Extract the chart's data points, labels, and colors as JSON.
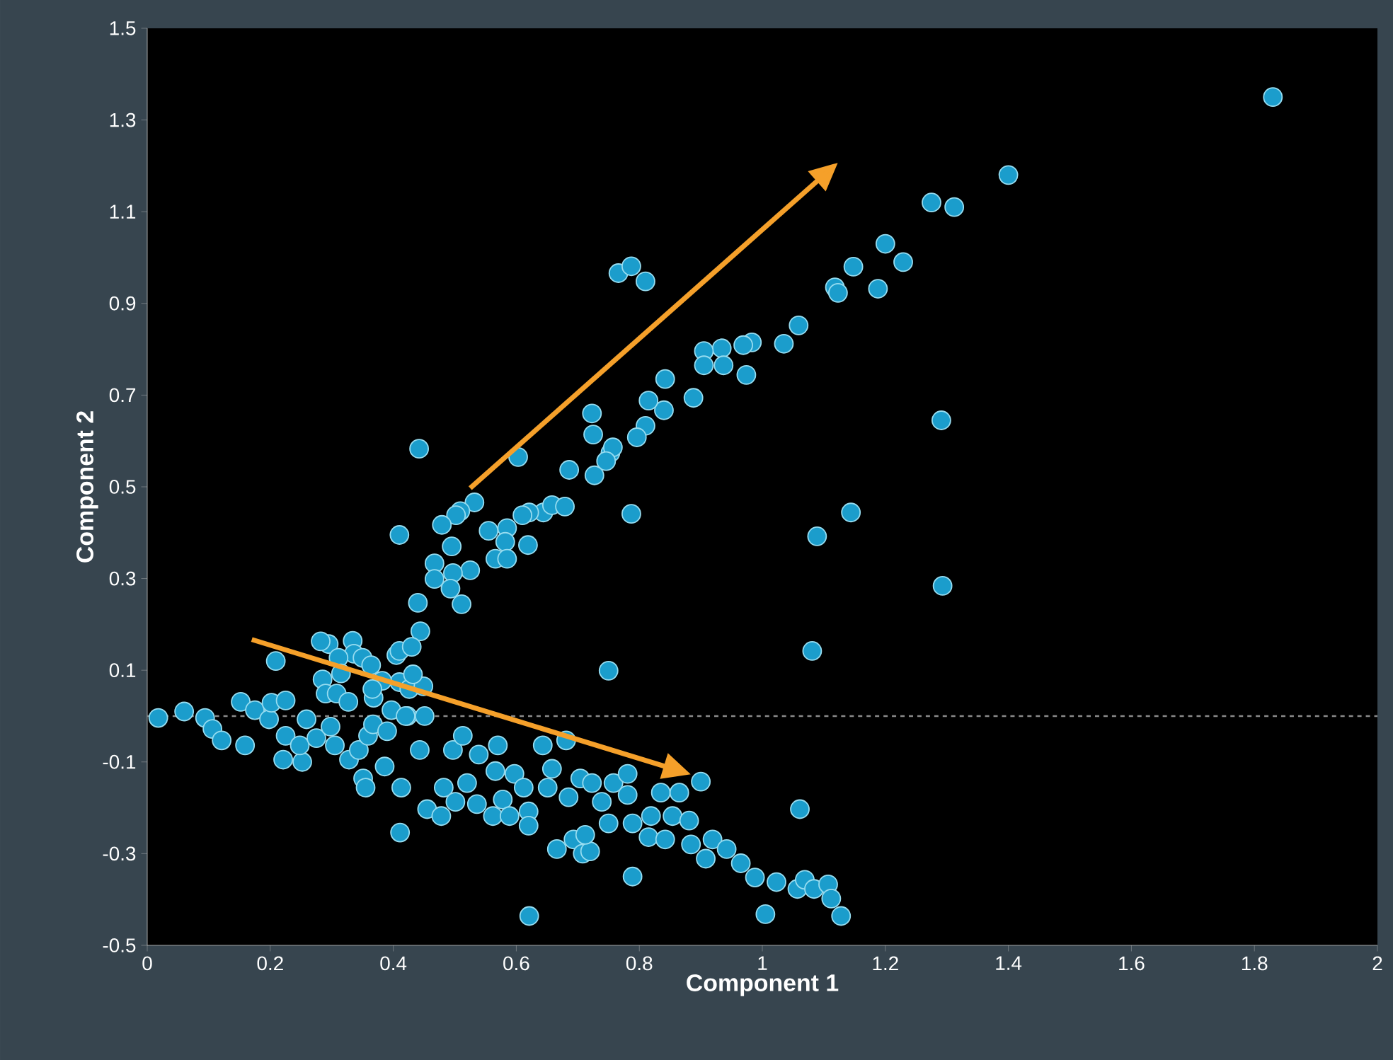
{
  "chart_data": {
    "type": "scatter",
    "xlabel": "Component 1",
    "ylabel": "Component 2",
    "color": "#1b9dcc",
    "marker": "circle",
    "xlim": [
      0,
      2
    ],
    "ylim": [
      -0.5,
      1.5
    ],
    "xticks": [
      0,
      0.2,
      0.4,
      0.6,
      0.8,
      1,
      1.2,
      1.4,
      1.6,
      1.8,
      2
    ],
    "yticks": [
      -0.5,
      -0.3,
      -0.1,
      0.1,
      0.3,
      0.5,
      0.7,
      0.9,
      1.1,
      1.3,
      1.5
    ],
    "ref_lines": [
      {
        "axis": "y",
        "value": 0,
        "line_style": "dashed",
        "color": "#8a8a8a"
      }
    ],
    "x": [
      1.83,
      1.4,
      1.275,
      1.312,
      1.2,
      1.229,
      1.148,
      1.118,
      1.123,
      1.188,
      0.766,
      0.787,
      0.81,
      1.059,
      1.035,
      0.983,
      0.969,
      0.934,
      0.905,
      0.905,
      0.974,
      0.937,
      0.888,
      0.842,
      0.84,
      0.815,
      0.81,
      0.796,
      0.723,
      0.725,
      0.753,
      0.757,
      0.746,
      0.727,
      0.686,
      0.644,
      0.621,
      0.61,
      0.658,
      0.679,
      0.787,
      0.442,
      0.603,
      0.532,
      0.509,
      0.502,
      0.479,
      0.495,
      0.555,
      0.585,
      0.582,
      0.619,
      0.566,
      0.585,
      0.525,
      0.41,
      0.467,
      0.497,
      0.511,
      0.44,
      0.444,
      0.493,
      0.467,
      1.291,
      1.293,
      1.089,
      1.144,
      1.081,
      0.75,
      0.209,
      0.295,
      0.334,
      0.336,
      0.35,
      0.311,
      0.364,
      0.285,
      0.29,
      0.315,
      0.308,
      0.368,
      0.405,
      0.41,
      0.43,
      0.41,
      0.426,
      0.382,
      0.327,
      0.449,
      0.423,
      0.451,
      0.366,
      0.018,
      0.06,
      0.094,
      0.106,
      0.121,
      0.152,
      0.159,
      0.175,
      0.198,
      0.202,
      0.225,
      0.221,
      0.225,
      0.252,
      0.259,
      0.248,
      0.275,
      0.298,
      0.305,
      0.328,
      0.344,
      0.351,
      0.359,
      0.355,
      0.367,
      0.39,
      0.386,
      0.397,
      0.42,
      0.413,
      0.411,
      0.432,
      0.443,
      0.455,
      0.478,
      0.482,
      0.497,
      0.501,
      0.513,
      0.52,
      0.536,
      0.539,
      0.562,
      0.566,
      0.57,
      0.578,
      0.589,
      0.597,
      0.612,
      0.62,
      0.62,
      0.621,
      0.643,
      0.651,
      0.658,
      0.666,
      0.681,
      0.685,
      0.693,
      0.708,
      0.72,
      0.712,
      0.704,
      0.723,
      0.739,
      0.75,
      0.758,
      0.781,
      0.789,
      0.789,
      0.781,
      0.815,
      0.819,
      0.835,
      0.842,
      0.854,
      0.865,
      0.881,
      0.884,
      0.9,
      0.908,
      0.919,
      0.942,
      0.965,
      0.988,
      1.023,
      1.005,
      1.061,
      1.057,
      1.069,
      1.084,
      1.107,
      1.112,
      1.128,
      0.282
    ],
    "values": [
      1.35,
      1.18,
      1.12,
      1.11,
      1.03,
      0.99,
      0.98,
      0.935,
      0.923,
      0.932,
      0.966,
      0.981,
      0.948,
      0.852,
      0.812,
      0.815,
      0.809,
      0.802,
      0.796,
      0.765,
      0.744,
      0.765,
      0.694,
      0.735,
      0.667,
      0.688,
      0.633,
      0.608,
      0.66,
      0.614,
      0.574,
      0.586,
      0.556,
      0.525,
      0.537,
      0.444,
      0.444,
      0.438,
      0.46,
      0.457,
      0.441,
      0.583,
      0.565,
      0.466,
      0.447,
      0.438,
      0.417,
      0.37,
      0.404,
      0.41,
      0.38,
      0.373,
      0.343,
      0.343,
      0.318,
      0.395,
      0.333,
      0.312,
      0.244,
      0.247,
      0.185,
      0.278,
      0.299,
      0.645,
      0.284,
      0.392,
      0.444,
      0.142,
      0.099,
      0.12,
      0.157,
      0.164,
      0.136,
      0.127,
      0.127,
      0.111,
      0.08,
      0.049,
      0.093,
      0.049,
      0.04,
      0.133,
      0.142,
      0.151,
      0.074,
      0.059,
      0.077,
      0.031,
      0.065,
      0.0,
      0.0,
      0.059,
      -0.004,
      0.01,
      -0.004,
      -0.028,
      -0.053,
      0.031,
      -0.064,
      0.013,
      -0.007,
      0.029,
      0.034,
      -0.095,
      -0.043,
      -0.1,
      -0.007,
      -0.064,
      -0.048,
      -0.023,
      -0.064,
      -0.095,
      -0.074,
      -0.136,
      -0.043,
      -0.156,
      -0.018,
      -0.033,
      -0.11,
      0.013,
      0.0,
      -0.156,
      -0.254,
      0.091,
      -0.074,
      -0.203,
      -0.218,
      -0.156,
      -0.074,
      -0.187,
      -0.043,
      -0.146,
      -0.192,
      -0.084,
      -0.218,
      -0.12,
      -0.064,
      -0.182,
      -0.218,
      -0.126,
      -0.156,
      -0.208,
      -0.239,
      -0.436,
      -0.064,
      -0.156,
      -0.115,
      -0.29,
      -0.053,
      -0.177,
      -0.269,
      -0.3,
      -0.295,
      -0.259,
      -0.136,
      -0.146,
      -0.187,
      -0.234,
      -0.146,
      -0.126,
      -0.234,
      -0.35,
      -0.172,
      -0.264,
      -0.218,
      -0.167,
      -0.269,
      -0.218,
      -0.167,
      -0.228,
      -0.28,
      -0.143,
      -0.311,
      -0.269,
      -0.29,
      -0.321,
      -0.352,
      -0.362,
      -0.432,
      -0.203,
      -0.377,
      -0.357,
      -0.377,
      -0.367,
      -0.398,
      -0.436,
      0.163
    ]
  }
}
